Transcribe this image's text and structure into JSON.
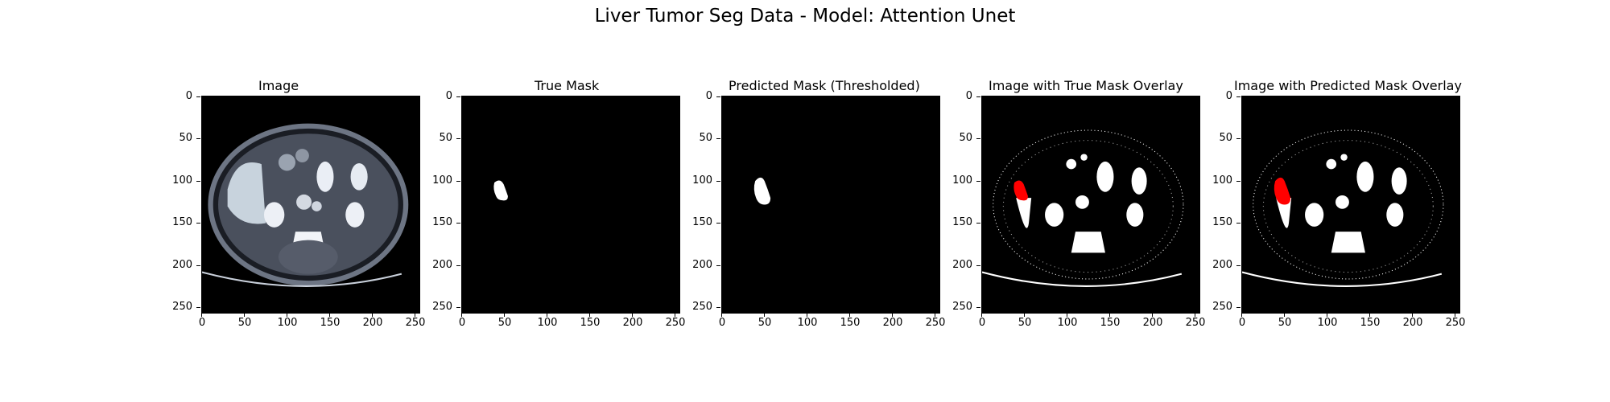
{
  "figure": {
    "title": "Liver Tumor Seg Data - Model: Attention Unet"
  },
  "axes": {
    "y_ticks": [
      "0",
      "50",
      "100",
      "150",
      "200",
      "250"
    ],
    "x_ticks": [
      "0",
      "50",
      "100",
      "150",
      "200",
      "250"
    ]
  },
  "panels": [
    {
      "title": "Image"
    },
    {
      "title": "True Mask"
    },
    {
      "title": "Predicted Mask (Thresholded)"
    },
    {
      "title": "Image with True Mask Overlay"
    },
    {
      "title": "Image with Predicted Mask Overlay"
    }
  ],
  "colors": {
    "overlay": "#ff0000",
    "mask": "#ffffff",
    "background": "#000000"
  }
}
